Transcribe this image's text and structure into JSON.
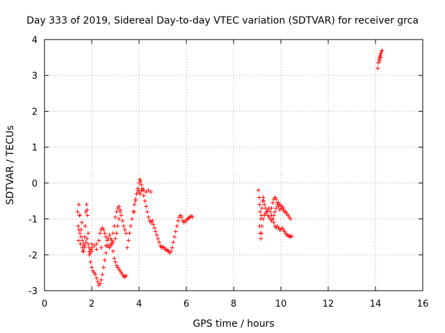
{
  "chart_data": {
    "type": "scatter",
    "title": "Day 333 of 2019, Sidereal Day-to-day VTEC variation (SDTVAR) for receiver grca",
    "xlabel": "GPS time / hours",
    "ylabel": "SDTVAR / TECUs",
    "xlim": [
      0,
      16
    ],
    "ylim": [
      -3,
      4
    ],
    "xticks": [
      "0",
      "2",
      "4",
      "6",
      "8",
      "10",
      "12",
      "14",
      "16"
    ],
    "yticks": [
      "-3",
      "-2",
      "-1",
      "0",
      "1",
      "2",
      "3",
      "4"
    ],
    "grid": true,
    "marker": "+",
    "color": "#ff0000",
    "series": [
      {
        "name": "SDTVAR",
        "segments": [
          [
            [
              1.4,
              -0.8
            ],
            [
              1.42,
              -1.2
            ],
            [
              1.44,
              -1.6
            ],
            [
              1.46,
              -1.3
            ],
            [
              1.48,
              -0.9
            ],
            [
              1.5,
              -1.4
            ],
            [
              1.52,
              -1.7
            ],
            [
              1.55,
              -1.5
            ],
            [
              1.58,
              -1.1
            ],
            [
              1.6,
              -1.6
            ],
            [
              1.62,
              -1.9
            ],
            [
              1.65,
              -1.7
            ],
            [
              1.68,
              -1.8
            ],
            [
              1.7,
              -1.5
            ],
            [
              1.72,
              -1.2
            ],
            [
              1.75,
              -0.8
            ],
            [
              1.78,
              -0.6
            ],
            [
              1.8,
              -0.75
            ],
            [
              1.82,
              -0.9
            ],
            [
              1.85,
              -1.4
            ],
            [
              1.88,
              -1.8
            ],
            [
              1.9,
              -1.9
            ],
            [
              1.93,
              -1.95
            ],
            [
              1.96,
              -1.85
            ],
            [
              2.0,
              -1.7
            ]
          ],
          [
            [
              1.45,
              -0.6
            ],
            [
              1.5,
              -0.9
            ],
            [
              1.55,
              -1.3
            ],
            [
              1.6,
              -1.8
            ],
            [
              1.65,
              -1.9
            ],
            [
              1.7,
              -1.75
            ],
            [
              1.75,
              -1.65
            ],
            [
              1.8,
              -1.55
            ],
            [
              1.85,
              -1.7
            ],
            [
              1.9,
              -2.0
            ],
            [
              1.95,
              -2.2
            ],
            [
              2.0,
              -2.35
            ],
            [
              2.05,
              -2.45
            ],
            [
              2.1,
              -2.5
            ],
            [
              2.15,
              -2.55
            ],
            [
              2.2,
              -2.65
            ],
            [
              2.25,
              -2.75
            ],
            [
              2.3,
              -2.85
            ],
            [
              2.35,
              -2.8
            ],
            [
              2.4,
              -2.7
            ],
            [
              2.45,
              -2.55
            ],
            [
              2.5,
              -2.35
            ],
            [
              2.55,
              -2.15
            ],
            [
              2.6,
              -1.95
            ],
            [
              2.65,
              -1.75
            ],
            [
              2.7,
              -1.55
            ],
            [
              2.75,
              -1.45
            ],
            [
              2.8,
              -1.55
            ],
            [
              2.85,
              -1.7
            ],
            [
              2.9,
              -1.9
            ],
            [
              2.95,
              -2.1
            ],
            [
              3.0,
              -2.2
            ],
            [
              3.05,
              -2.3
            ],
            [
              3.1,
              -2.35
            ],
            [
              3.15,
              -2.4
            ],
            [
              3.2,
              -2.45
            ],
            [
              3.25,
              -2.5
            ],
            [
              3.3,
              -2.55
            ],
            [
              3.35,
              -2.6
            ],
            [
              3.4,
              -2.62
            ],
            [
              3.45,
              -2.58
            ]
          ],
          [
            [
              2.0,
              -1.8
            ],
            [
              2.1,
              -1.75
            ],
            [
              2.2,
              -1.7
            ],
            [
              2.3,
              -1.6
            ],
            [
              2.35,
              -1.4
            ],
            [
              2.4,
              -1.3
            ],
            [
              2.45,
              -1.25
            ],
            [
              2.5,
              -1.3
            ],
            [
              2.55,
              -1.4
            ],
            [
              2.6,
              -1.5
            ],
            [
              2.65,
              -1.6
            ],
            [
              2.7,
              -1.75
            ],
            [
              2.75,
              -1.8
            ],
            [
              2.8,
              -1.75
            ],
            [
              2.85,
              -1.6
            ],
            [
              2.9,
              -1.4
            ],
            [
              2.95,
              -1.2
            ],
            [
              3.0,
              -0.95
            ],
            [
              3.05,
              -0.8
            ],
            [
              3.1,
              -0.7
            ],
            [
              3.15,
              -0.65
            ],
            [
              3.2,
              -0.75
            ],
            [
              3.25,
              -0.9
            ],
            [
              3.3,
              -1.05
            ],
            [
              3.35,
              -1.2
            ],
            [
              3.4,
              -1.3
            ],
            [
              3.45,
              -1.4
            ]
          ],
          [
            [
              2.0,
              -1.9
            ],
            [
              2.2,
              -1.85
            ],
            [
              2.4,
              -1.8
            ],
            [
              2.6,
              -1.75
            ],
            [
              2.8,
              -1.7
            ],
            [
              2.9,
              -1.65
            ],
            [
              3.0,
              -1.55
            ],
            [
              3.05,
              -1.4
            ],
            [
              3.1,
              -1.2
            ],
            [
              3.15,
              -1.0
            ],
            [
              3.2,
              -0.8
            ]
          ],
          [
            [
              3.5,
              -1.8
            ],
            [
              3.55,
              -1.6
            ],
            [
              3.6,
              -1.4
            ],
            [
              3.65,
              -1.2
            ],
            [
              3.7,
              -1.0
            ],
            [
              3.75,
              -0.8
            ],
            [
              3.8,
              -0.6
            ],
            [
              3.85,
              -0.45
            ],
            [
              3.9,
              -0.3
            ],
            [
              3.95,
              -0.15
            ],
            [
              4.0,
              0.0
            ],
            [
              4.03,
              0.1
            ],
            [
              4.06,
              0.05
            ],
            [
              4.1,
              -0.05
            ],
            [
              4.15,
              -0.2
            ],
            [
              4.2,
              -0.35
            ],
            [
              4.25,
              -0.5
            ],
            [
              4.3,
              -0.65
            ],
            [
              4.35,
              -0.8
            ],
            [
              4.4,
              -0.95
            ],
            [
              4.45,
              -1.05
            ],
            [
              4.5,
              -1.1
            ],
            [
              4.55,
              -1.05
            ]
          ],
          [
            [
              3.8,
              -0.8
            ],
            [
              3.85,
              -0.5
            ],
            [
              3.9,
              -0.3
            ],
            [
              3.95,
              -0.2
            ],
            [
              4.0,
              -0.25
            ],
            [
              4.05,
              -0.3
            ],
            [
              4.1,
              -0.2
            ],
            [
              4.15,
              -0.15
            ],
            [
              4.2,
              -0.2
            ],
            [
              4.3,
              -0.25
            ],
            [
              4.4,
              -0.2
            ],
            [
              4.5,
              -0.25
            ]
          ],
          [
            [
              4.55,
              -1.05
            ],
            [
              4.6,
              -1.15
            ],
            [
              4.65,
              -1.25
            ],
            [
              4.7,
              -1.35
            ],
            [
              4.75,
              -1.45
            ],
            [
              4.8,
              -1.55
            ],
            [
              4.85,
              -1.65
            ],
            [
              4.9,
              -1.75
            ],
            [
              4.95,
              -1.8
            ],
            [
              5.0,
              -1.78
            ],
            [
              5.05,
              -1.8
            ],
            [
              5.1,
              -1.85
            ],
            [
              5.15,
              -1.85
            ],
            [
              5.2,
              -1.88
            ],
            [
              5.25,
              -1.9
            ],
            [
              5.3,
              -1.95
            ],
            [
              5.35,
              -1.9
            ],
            [
              5.4,
              -1.8
            ],
            [
              5.45,
              -1.65
            ],
            [
              5.5,
              -1.5
            ],
            [
              5.55,
              -1.35
            ],
            [
              5.6,
              -1.2
            ],
            [
              5.65,
              -1.05
            ],
            [
              5.7,
              -0.95
            ],
            [
              5.75,
              -0.9
            ],
            [
              5.8,
              -0.95
            ],
            [
              5.85,
              -1.05
            ],
            [
              5.9,
              -1.1
            ],
            [
              5.95,
              -1.05
            ],
            [
              6.0,
              -1.05
            ],
            [
              6.05,
              -1.0
            ],
            [
              6.1,
              -0.98
            ],
            [
              6.15,
              -0.95
            ],
            [
              6.2,
              -0.92
            ],
            [
              6.25,
              -0.95
            ]
          ],
          [
            [
              9.05,
              -0.2
            ],
            [
              9.08,
              -0.4
            ],
            [
              9.1,
              -0.6
            ],
            [
              9.12,
              -0.8
            ],
            [
              9.15,
              -1.0
            ],
            [
              9.18,
              -0.9
            ],
            [
              9.2,
              -0.7
            ],
            [
              9.22,
              -0.5
            ],
            [
              9.25,
              -0.4
            ],
            [
              9.28,
              -0.5
            ],
            [
              9.3,
              -0.6
            ],
            [
              9.35,
              -0.7
            ],
            [
              9.4,
              -0.8
            ],
            [
              9.45,
              -0.9
            ],
            [
              9.5,
              -0.95
            ],
            [
              9.55,
              -1.0
            ],
            [
              9.6,
              -1.05
            ],
            [
              9.65,
              -1.0
            ],
            [
              9.7,
              -0.9
            ],
            [
              9.75,
              -0.8
            ],
            [
              9.8,
              -0.7
            ],
            [
              9.85,
              -0.6
            ],
            [
              9.9,
              -0.55
            ],
            [
              9.95,
              -0.6
            ],
            [
              10.0,
              -0.65
            ],
            [
              10.05,
              -0.7
            ],
            [
              10.1,
              -0.75
            ],
            [
              10.15,
              -0.8
            ],
            [
              10.2,
              -0.8
            ],
            [
              10.25,
              -0.85
            ],
            [
              10.3,
              -0.9
            ],
            [
              10.35,
              -0.95
            ],
            [
              10.4,
              -1.0
            ]
          ],
          [
            [
              9.1,
              -1.2
            ],
            [
              9.12,
              -1.4
            ],
            [
              9.15,
              -1.55
            ],
            [
              9.18,
              -1.4
            ],
            [
              9.2,
              -1.2
            ],
            [
              9.25,
              -1.0
            ],
            [
              9.3,
              -0.9
            ],
            [
              9.35,
              -0.85
            ],
            [
              9.4,
              -0.8
            ],
            [
              9.45,
              -0.75
            ],
            [
              9.5,
              -0.7
            ],
            [
              9.55,
              -0.8
            ],
            [
              9.6,
              -0.9
            ],
            [
              9.65,
              -1.0
            ],
            [
              9.7,
              -1.1
            ],
            [
              9.75,
              -1.2
            ],
            [
              9.8,
              -1.25
            ],
            [
              9.85,
              -1.2
            ],
            [
              9.9,
              -1.25
            ],
            [
              9.95,
              -1.3
            ],
            [
              10.0,
              -1.3
            ],
            [
              10.05,
              -1.25
            ],
            [
              10.1,
              -1.3
            ],
            [
              10.15,
              -1.35
            ],
            [
              10.2,
              -1.4
            ],
            [
              10.25,
              -1.45
            ],
            [
              10.3,
              -1.45
            ],
            [
              10.35,
              -1.48
            ],
            [
              10.4,
              -1.5
            ],
            [
              10.45,
              -1.48
            ]
          ],
          [
            [
              9.6,
              -0.7
            ],
            [
              9.65,
              -0.55
            ],
            [
              9.7,
              -0.45
            ],
            [
              9.75,
              -0.4
            ],
            [
              9.8,
              -0.45
            ],
            [
              9.85,
              -0.55
            ],
            [
              9.9,
              -0.65
            ],
            [
              9.95,
              -0.75
            ],
            [
              10.0,
              -0.7
            ],
            [
              10.05,
              -0.65
            ],
            [
              10.1,
              -0.7
            ]
          ],
          [
            [
              14.1,
              3.2
            ],
            [
              14.12,
              3.35
            ],
            [
              14.15,
              3.45
            ],
            [
              14.17,
              3.5
            ],
            [
              14.2,
              3.55
            ],
            [
              14.22,
              3.6
            ],
            [
              14.25,
              3.65
            ],
            [
              14.28,
              3.7
            ],
            [
              14.18,
              3.4
            ],
            [
              14.23,
              3.5
            ]
          ]
        ]
      }
    ]
  }
}
